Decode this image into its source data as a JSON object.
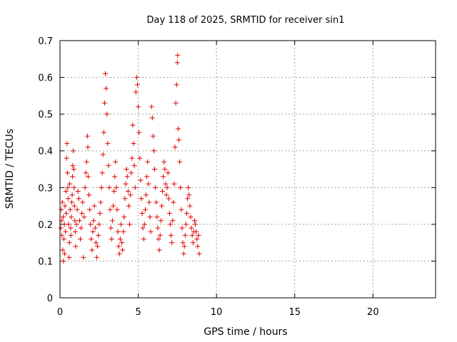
{
  "chart_data": {
    "type": "scatter",
    "title": "Day 118 of 2025, SRMTID for receiver sin1",
    "xlabel": "GPS time / hours",
    "ylabel": "SRMTID / TECUs",
    "xlim": [
      0,
      24
    ],
    "ylim": [
      0,
      0.7
    ],
    "xticks": [
      0,
      5,
      10,
      15,
      20
    ],
    "yticks": [
      0,
      0.1,
      0.2,
      0.3,
      0.4,
      0.5,
      0.6,
      0.7
    ],
    "xtick_labels": [
      "0",
      "5",
      "10",
      "15",
      "20"
    ],
    "ytick_labels": [
      "0",
      "0.1",
      "0.2",
      "0.3",
      "0.4",
      "0.5",
      "0.6",
      "0.7"
    ],
    "grid": true,
    "marker": "+",
    "color": "#e00000",
    "series": [
      {
        "name": "sin1",
        "points": [
          [
            0.05,
            0.19
          ],
          [
            0.08,
            0.24
          ],
          [
            0.1,
            0.21
          ],
          [
            0.12,
            0.17
          ],
          [
            0.15,
            0.26
          ],
          [
            0.18,
            0.13
          ],
          [
            0.2,
            0.22
          ],
          [
            0.22,
            0.1
          ],
          [
            0.25,
            0.16
          ],
          [
            0.28,
            0.2
          ],
          [
            0.3,
            0.12
          ],
          [
            0.32,
            0.25
          ],
          [
            0.35,
            0.18
          ],
          [
            0.38,
            0.29
          ],
          [
            0.4,
            0.23
          ],
          [
            0.42,
            0.38
          ],
          [
            0.45,
            0.42
          ],
          [
            0.48,
            0.34
          ],
          [
            0.5,
            0.3
          ],
          [
            0.52,
            0.27
          ],
          [
            0.55,
            0.2
          ],
          [
            0.58,
            0.11
          ],
          [
            0.6,
            0.15
          ],
          [
            0.62,
            0.31
          ],
          [
            0.65,
            0.24
          ],
          [
            0.68,
            0.19
          ],
          [
            0.7,
            0.17
          ],
          [
            0.72,
            0.22
          ],
          [
            0.75,
            0.26
          ],
          [
            0.78,
            0.28
          ],
          [
            0.8,
            0.33
          ],
          [
            0.82,
            0.36
          ],
          [
            0.85,
            0.4
          ],
          [
            0.88,
            0.35
          ],
          [
            0.9,
            0.3
          ],
          [
            0.92,
            0.25
          ],
          [
            0.95,
            0.21
          ],
          [
            0.98,
            0.18
          ],
          [
            1.0,
            0.14
          ],
          [
            1.05,
            0.2
          ],
          [
            1.1,
            0.24
          ],
          [
            1.15,
            0.29
          ],
          [
            1.2,
            0.27
          ],
          [
            1.25,
            0.21
          ],
          [
            1.3,
            0.16
          ],
          [
            1.35,
            0.19
          ],
          [
            1.4,
            0.23
          ],
          [
            1.45,
            0.26
          ],
          [
            1.5,
            0.11
          ],
          [
            1.55,
            0.22
          ],
          [
            1.6,
            0.3
          ],
          [
            1.65,
            0.34
          ],
          [
            1.7,
            0.37
          ],
          [
            1.75,
            0.44
          ],
          [
            1.78,
            0.41
          ],
          [
            1.8,
            0.33
          ],
          [
            1.85,
            0.28
          ],
          [
            1.9,
            0.24
          ],
          [
            1.95,
            0.2
          ],
          [
            2.0,
            0.16
          ],
          [
            2.05,
            0.13
          ],
          [
            2.1,
            0.18
          ],
          [
            2.15,
            0.21
          ],
          [
            2.2,
            0.25
          ],
          [
            2.25,
            0.19
          ],
          [
            2.3,
            0.15
          ],
          [
            2.35,
            0.11
          ],
          [
            2.4,
            0.14
          ],
          [
            2.45,
            0.17
          ],
          [
            2.5,
            0.2
          ],
          [
            2.55,
            0.23
          ],
          [
            2.6,
            0.26
          ],
          [
            2.65,
            0.3
          ],
          [
            2.7,
            0.34
          ],
          [
            2.75,
            0.39
          ],
          [
            2.8,
            0.45
          ],
          [
            2.85,
            0.53
          ],
          [
            2.9,
            0.61
          ],
          [
            2.95,
            0.57
          ],
          [
            3.0,
            0.5
          ],
          [
            3.05,
            0.42
          ],
          [
            3.1,
            0.36
          ],
          [
            3.15,
            0.3
          ],
          [
            3.2,
            0.24
          ],
          [
            3.25,
            0.19
          ],
          [
            3.3,
            0.16
          ],
          [
            3.35,
            0.21
          ],
          [
            3.4,
            0.25
          ],
          [
            3.45,
            0.29
          ],
          [
            3.5,
            0.33
          ],
          [
            3.55,
            0.37
          ],
          [
            3.6,
            0.3
          ],
          [
            3.65,
            0.24
          ],
          [
            3.7,
            0.18
          ],
          [
            3.75,
            0.14
          ],
          [
            3.8,
            0.12
          ],
          [
            3.85,
            0.16
          ],
          [
            3.9,
            0.2
          ],
          [
            3.95,
            0.15
          ],
          [
            4.0,
            0.13
          ],
          [
            4.05,
            0.18
          ],
          [
            4.1,
            0.22
          ],
          [
            4.15,
            0.27
          ],
          [
            4.2,
            0.31
          ],
          [
            4.25,
            0.35
          ],
          [
            4.3,
            0.33
          ],
          [
            4.35,
            0.29
          ],
          [
            4.4,
            0.25
          ],
          [
            4.45,
            0.2
          ],
          [
            4.5,
            0.28
          ],
          [
            4.55,
            0.34
          ],
          [
            4.6,
            0.38
          ],
          [
            4.65,
            0.47
          ],
          [
            4.7,
            0.42
          ],
          [
            4.75,
            0.36
          ],
          [
            4.8,
            0.3
          ],
          [
            4.85,
            0.56
          ],
          [
            4.9,
            0.6
          ],
          [
            4.95,
            0.58
          ],
          [
            5.0,
            0.52
          ],
          [
            5.05,
            0.45
          ],
          [
            5.1,
            0.38
          ],
          [
            5.15,
            0.32
          ],
          [
            5.2,
            0.27
          ],
          [
            5.25,
            0.23
          ],
          [
            5.3,
            0.19
          ],
          [
            5.35,
            0.16
          ],
          [
            5.4,
            0.2
          ],
          [
            5.45,
            0.24
          ],
          [
            5.5,
            0.28
          ],
          [
            5.55,
            0.33
          ],
          [
            5.6,
            0.37
          ],
          [
            5.65,
            0.31
          ],
          [
            5.7,
            0.26
          ],
          [
            5.75,
            0.22
          ],
          [
            5.8,
            0.18
          ],
          [
            5.85,
            0.52
          ],
          [
            5.9,
            0.49
          ],
          [
            5.95,
            0.44
          ],
          [
            6.0,
            0.4
          ],
          [
            6.05,
            0.35
          ],
          [
            6.1,
            0.3
          ],
          [
            6.15,
            0.26
          ],
          [
            6.2,
            0.22
          ],
          [
            6.25,
            0.19
          ],
          [
            6.3,
            0.16
          ],
          [
            6.35,
            0.13
          ],
          [
            6.4,
            0.17
          ],
          [
            6.45,
            0.21
          ],
          [
            6.5,
            0.25
          ],
          [
            6.55,
            0.29
          ],
          [
            6.6,
            0.33
          ],
          [
            6.65,
            0.37
          ],
          [
            6.7,
            0.35
          ],
          [
            6.75,
            0.31
          ],
          [
            6.8,
            0.28
          ],
          [
            6.85,
            0.3
          ],
          [
            6.9,
            0.34
          ],
          [
            6.95,
            0.27
          ],
          [
            7.0,
            0.23
          ],
          [
            7.05,
            0.2
          ],
          [
            7.1,
            0.17
          ],
          [
            7.15,
            0.15
          ],
          [
            7.2,
            0.21
          ],
          [
            7.25,
            0.26
          ],
          [
            7.3,
            0.31
          ],
          [
            7.35,
            0.41
          ],
          [
            7.4,
            0.53
          ],
          [
            7.45,
            0.58
          ],
          [
            7.5,
            0.64
          ],
          [
            7.52,
            0.66
          ],
          [
            7.55,
            0.46
          ],
          [
            7.6,
            0.43
          ],
          [
            7.65,
            0.37
          ],
          [
            7.7,
            0.3
          ],
          [
            7.75,
            0.24
          ],
          [
            7.8,
            0.19
          ],
          [
            7.85,
            0.15
          ],
          [
            7.9,
            0.12
          ],
          [
            7.95,
            0.14
          ],
          [
            8.0,
            0.17
          ],
          [
            8.05,
            0.2
          ],
          [
            8.1,
            0.23
          ],
          [
            8.15,
            0.27
          ],
          [
            8.2,
            0.3
          ],
          [
            8.25,
            0.28
          ],
          [
            8.3,
            0.25
          ],
          [
            8.35,
            0.22
          ],
          [
            8.4,
            0.19
          ],
          [
            8.45,
            0.17
          ],
          [
            8.5,
            0.15
          ],
          [
            8.55,
            0.18
          ],
          [
            8.6,
            0.21
          ],
          [
            8.65,
            0.2
          ],
          [
            8.7,
            0.18
          ],
          [
            8.75,
            0.16
          ],
          [
            8.8,
            0.14
          ],
          [
            8.85,
            0.17
          ],
          [
            8.9,
            0.12
          ]
        ]
      }
    ]
  }
}
